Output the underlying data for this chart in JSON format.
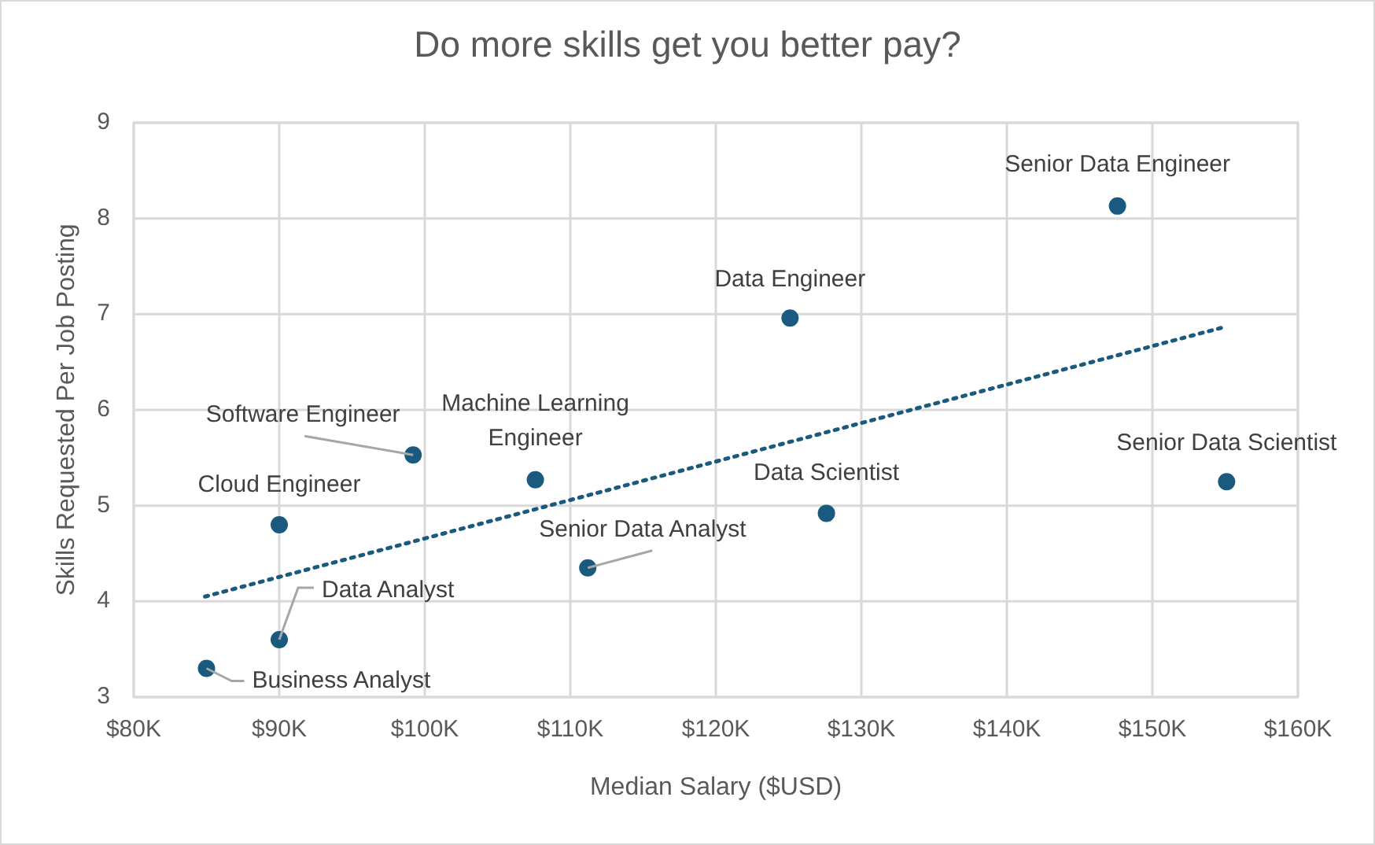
{
  "chart_data": {
    "type": "scatter",
    "title": "Do more skills get you better pay?",
    "xlabel": "Median Salary ($USD)",
    "ylabel": "Skills Requested Per Job Posting",
    "xlim": [
      80,
      160
    ],
    "xticks": [
      {
        "value": 80,
        "label": "$80K"
      },
      {
        "value": 90,
        "label": "$90K"
      },
      {
        "value": 100,
        "label": "$100K"
      },
      {
        "value": 110,
        "label": "$110K"
      },
      {
        "value": 120,
        "label": "$120K"
      },
      {
        "value": 130,
        "label": "$130K"
      },
      {
        "value": 140,
        "label": "$140K"
      },
      {
        "value": 150,
        "label": "$150K"
      },
      {
        "value": 160,
        "label": "$160K"
      }
    ],
    "ylim": [
      3,
      9
    ],
    "yticks": [
      3,
      4,
      5,
      6,
      7,
      8,
      9
    ],
    "grid": true,
    "marker": "circle",
    "x": [
      85,
      90,
      90,
      99.2,
      107.6,
      111.2,
      125.1,
      127.6,
      147.6,
      155.1
    ],
    "series": [
      {
        "color": "#1a5a7e",
        "values": [
          3.3,
          3.6,
          4.8,
          5.53,
          5.27,
          4.35,
          6.96,
          4.92,
          8.13,
          5.25
        ]
      },
      {
        "type": "line",
        "color": "#1a5a7e",
        "line_style": "dotted",
        "marker": "none",
        "x": [
          84.9,
          154.8
        ],
        "values": [
          4.05,
          6.86
        ]
      }
    ],
    "annotations": [
      {
        "text": "Business Analyst",
        "x": 85,
        "y": 3.3
      },
      {
        "text": "Data Analyst",
        "x": 90,
        "y": 3.6
      },
      {
        "text": "Cloud Engineer",
        "x": 90,
        "y": 4.8
      },
      {
        "text": "Software Engineer",
        "x": 99.2,
        "y": 5.53
      },
      {
        "text": "Machine Learning Engineer",
        "x": 107.6,
        "y": 5.27
      },
      {
        "text": "Senior Data Analyst",
        "x": 111.2,
        "y": 4.35
      },
      {
        "text": "Data Engineer",
        "x": 125.1,
        "y": 6.96
      },
      {
        "text": "Data Scientist",
        "x": 127.6,
        "y": 4.92
      },
      {
        "text": "Senior Data Engineer",
        "x": 147.6,
        "y": 8.13
      },
      {
        "text": "Senior Data Scientist",
        "x": 155.1,
        "y": 5.25
      }
    ]
  }
}
